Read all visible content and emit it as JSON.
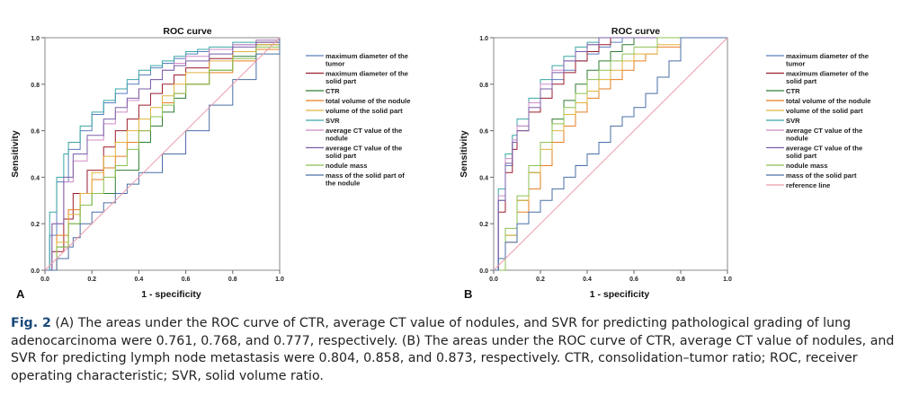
{
  "chart_data": [
    {
      "panel_label": "A",
      "type": "line",
      "title": "ROC curve",
      "xlabel": "1 - specificity",
      "ylabel": "Sensitivity",
      "xlim": [
        0,
        1
      ],
      "ylim": [
        0,
        1
      ],
      "xticks": [
        "0.0",
        "0.2",
        "0.4",
        "0.6",
        "0.8",
        "1.0"
      ],
      "yticks": [
        "0.0",
        "0.2",
        "0.4",
        "0.6",
        "0.8",
        "1.0"
      ],
      "legend_position": "right",
      "series": [
        {
          "name": "maximum diameter of the tumor",
          "color": "#5b7fbf",
          "x": [
            0,
            0.02,
            0.05,
            0.1,
            0.15,
            0.2,
            0.25,
            0.3,
            0.35,
            0.4,
            0.45,
            0.5,
            0.55,
            0.6,
            0.65,
            0.7,
            0.8,
            0.9,
            1
          ],
          "y": [
            0,
            0.15,
            0.38,
            0.52,
            0.6,
            0.67,
            0.72,
            0.76,
            0.8,
            0.84,
            0.87,
            0.89,
            0.91,
            0.93,
            0.94,
            0.95,
            0.97,
            0.99,
            1
          ]
        },
        {
          "name": "maximum diameter of the solid part",
          "color": "#9b1c2e",
          "x": [
            0,
            0.03,
            0.08,
            0.12,
            0.18,
            0.25,
            0.3,
            0.35,
            0.4,
            0.45,
            0.5,
            0.55,
            0.6,
            0.7,
            0.8,
            0.9,
            1
          ],
          "y": [
            0,
            0.08,
            0.22,
            0.33,
            0.43,
            0.53,
            0.6,
            0.65,
            0.71,
            0.76,
            0.8,
            0.84,
            0.87,
            0.91,
            0.94,
            0.98,
            1
          ]
        },
        {
          "name": "CTR",
          "color": "#2e7d32",
          "x": [
            0,
            0.05,
            0.1,
            0.15,
            0.2,
            0.3,
            0.4,
            0.45,
            0.5,
            0.55,
            0.6,
            0.7,
            0.8,
            0.9,
            1
          ],
          "y": [
            0,
            0.1,
            0.2,
            0.28,
            0.33,
            0.43,
            0.55,
            0.62,
            0.68,
            0.74,
            0.8,
            0.86,
            0.92,
            0.97,
            1
          ]
        },
        {
          "name": "total volume of the nodule",
          "color": "#e67e22",
          "x": [
            0,
            0.05,
            0.1,
            0.15,
            0.2,
            0.25,
            0.3,
            0.35,
            0.4,
            0.45,
            0.5,
            0.55,
            0.6,
            0.7,
            0.8,
            0.9,
            1
          ],
          "y": [
            0,
            0.15,
            0.26,
            0.33,
            0.39,
            0.44,
            0.49,
            0.55,
            0.6,
            0.66,
            0.72,
            0.76,
            0.8,
            0.85,
            0.9,
            0.95,
            1
          ]
        },
        {
          "name": "volume of the solid part",
          "color": "#e3b23c",
          "x": [
            0,
            0.05,
            0.1,
            0.15,
            0.2,
            0.25,
            0.3,
            0.35,
            0.4,
            0.45,
            0.5,
            0.55,
            0.6,
            0.7,
            0.8,
            0.9,
            1
          ],
          "y": [
            0,
            0.12,
            0.24,
            0.33,
            0.42,
            0.49,
            0.55,
            0.6,
            0.65,
            0.7,
            0.75,
            0.8,
            0.85,
            0.9,
            0.94,
            0.97,
            1
          ]
        },
        {
          "name": "SVR",
          "color": "#3aa6a6",
          "x": [
            0,
            0.02,
            0.05,
            0.08,
            0.1,
            0.15,
            0.2,
            0.25,
            0.3,
            0.35,
            0.4,
            0.45,
            0.5,
            0.55,
            0.6,
            0.65,
            0.7,
            0.8,
            0.9,
            1
          ],
          "y": [
            0,
            0.25,
            0.4,
            0.5,
            0.55,
            0.62,
            0.68,
            0.73,
            0.78,
            0.82,
            0.86,
            0.88,
            0.9,
            0.92,
            0.94,
            0.95,
            0.96,
            0.98,
            0.99,
            1
          ]
        },
        {
          "name": "average CT value of the nodule",
          "color": "#d08bc8",
          "x": [
            0,
            0.03,
            0.08,
            0.12,
            0.18,
            0.25,
            0.3,
            0.35,
            0.4,
            0.45,
            0.5,
            0.55,
            0.6,
            0.7,
            0.8,
            0.9,
            1
          ],
          "y": [
            0,
            0.2,
            0.38,
            0.47,
            0.56,
            0.63,
            0.68,
            0.73,
            0.78,
            0.82,
            0.86,
            0.89,
            0.92,
            0.95,
            0.97,
            0.99,
            1
          ]
        },
        {
          "name": "average CT value of the solid part",
          "color": "#7b5ea7",
          "x": [
            0,
            0.03,
            0.08,
            0.12,
            0.18,
            0.25,
            0.3,
            0.35,
            0.4,
            0.45,
            0.5,
            0.55,
            0.6,
            0.7,
            0.8,
            0.9,
            1
          ],
          "y": [
            0,
            0.2,
            0.4,
            0.5,
            0.58,
            0.65,
            0.7,
            0.74,
            0.78,
            0.82,
            0.86,
            0.88,
            0.9,
            0.93,
            0.96,
            0.98,
            1
          ]
        },
        {
          "name": "nodule mass",
          "color": "#8cc152",
          "x": [
            0,
            0.05,
            0.1,
            0.15,
            0.2,
            0.25,
            0.3,
            0.35,
            0.4,
            0.45,
            0.5,
            0.55,
            0.6,
            0.7,
            0.8,
            0.9,
            1
          ],
          "y": [
            0,
            0.1,
            0.2,
            0.28,
            0.33,
            0.4,
            0.45,
            0.52,
            0.6,
            0.66,
            0.71,
            0.76,
            0.8,
            0.86,
            0.91,
            0.96,
            1
          ]
        },
        {
          "name": "mass of the solid part of the nodule",
          "color": "#4a6fa5",
          "x": [
            0,
            0.05,
            0.1,
            0.12,
            0.15,
            0.2,
            0.25,
            0.3,
            0.35,
            0.4,
            0.5,
            0.6,
            0.7,
            0.8,
            0.9,
            1
          ],
          "y": [
            0,
            0.05,
            0.1,
            0.14,
            0.2,
            0.25,
            0.29,
            0.33,
            0.37,
            0.42,
            0.5,
            0.6,
            0.71,
            0.82,
            0.93,
            1
          ]
        },
        {
          "name": "reference line",
          "color": "#ef9aa8",
          "in_legend": false,
          "x": [
            0,
            1
          ],
          "y": [
            0,
            1
          ]
        }
      ]
    },
    {
      "panel_label": "B",
      "type": "line",
      "title": "ROC curve",
      "xlabel": "1 - specificity",
      "ylabel": "Sensitivity",
      "xlim": [
        0,
        1
      ],
      "ylim": [
        0,
        1
      ],
      "xticks": [
        "0.0",
        "0.2",
        "0.4",
        "0.6",
        "0.8",
        "1.0"
      ],
      "yticks": [
        "0.0",
        "0.2",
        "0.4",
        "0.6",
        "0.8",
        "1.0"
      ],
      "legend_position": "right",
      "series": [
        {
          "name": "maximum diameter of the tumor",
          "color": "#5b7fbf",
          "x": [
            0,
            0.02,
            0.05,
            0.08,
            0.1,
            0.15,
            0.2,
            0.25,
            0.3,
            0.35,
            0.4,
            0.45,
            0.5,
            0.55,
            0.6,
            0.65,
            0.7,
            1
          ],
          "y": [
            0,
            0.3,
            0.45,
            0.55,
            0.62,
            0.72,
            0.78,
            0.82,
            0.86,
            0.9,
            0.93,
            0.96,
            0.98,
            1,
            1,
            1,
            1,
            1
          ]
        },
        {
          "name": "maximum diameter of the solid part",
          "color": "#9b1c2e",
          "x": [
            0,
            0.02,
            0.05,
            0.08,
            0.1,
            0.15,
            0.2,
            0.25,
            0.3,
            0.35,
            0.4,
            0.45,
            0.5,
            0.55,
            0.6,
            1
          ],
          "y": [
            0,
            0.25,
            0.42,
            0.52,
            0.6,
            0.68,
            0.74,
            0.8,
            0.85,
            0.9,
            0.94,
            0.97,
            1,
            1,
            1,
            1
          ]
        },
        {
          "name": "CTR",
          "color": "#2e7d32",
          "x": [
            0,
            0.05,
            0.1,
            0.15,
            0.2,
            0.25,
            0.3,
            0.35,
            0.4,
            0.45,
            0.5,
            0.55,
            0.6,
            0.7,
            1
          ],
          "y": [
            0,
            0.15,
            0.3,
            0.42,
            0.55,
            0.65,
            0.73,
            0.8,
            0.86,
            0.9,
            0.94,
            0.97,
            1,
            1,
            1
          ]
        },
        {
          "name": "total volume of the nodule",
          "color": "#e67e22",
          "x": [
            0,
            0.05,
            0.1,
            0.15,
            0.2,
            0.25,
            0.3,
            0.35,
            0.4,
            0.45,
            0.5,
            0.55,
            0.6,
            0.65,
            0.7,
            0.8,
            1
          ],
          "y": [
            0,
            0.12,
            0.25,
            0.35,
            0.45,
            0.55,
            0.62,
            0.68,
            0.74,
            0.78,
            0.82,
            0.86,
            0.9,
            0.93,
            0.96,
            1,
            1
          ]
        },
        {
          "name": "volume of the solid part",
          "color": "#e3b23c",
          "x": [
            0,
            0.05,
            0.1,
            0.15,
            0.2,
            0.25,
            0.3,
            0.35,
            0.4,
            0.45,
            0.5,
            0.55,
            0.6,
            0.7,
            0.8,
            1
          ],
          "y": [
            0,
            0.15,
            0.3,
            0.42,
            0.52,
            0.6,
            0.67,
            0.72,
            0.77,
            0.82,
            0.86,
            0.9,
            0.93,
            0.97,
            1,
            1
          ]
        },
        {
          "name": "SVR",
          "color": "#3aa6a6",
          "x": [
            0,
            0.02,
            0.05,
            0.08,
            0.1,
            0.15,
            0.2,
            0.25,
            0.3,
            0.35,
            0.4,
            0.45,
            0.5,
            0.55,
            1
          ],
          "y": [
            0,
            0.35,
            0.5,
            0.58,
            0.65,
            0.74,
            0.82,
            0.88,
            0.92,
            0.96,
            0.98,
            1,
            1,
            1,
            1
          ]
        },
        {
          "name": "average CT value of the nodule",
          "color": "#d08bc8",
          "x": [
            0,
            0.02,
            0.05,
            0.08,
            0.1,
            0.15,
            0.2,
            0.25,
            0.3,
            0.35,
            0.4,
            0.45,
            0.5,
            1
          ],
          "y": [
            0,
            0.32,
            0.48,
            0.56,
            0.62,
            0.72,
            0.8,
            0.86,
            0.9,
            0.94,
            0.97,
            1,
            1,
            1
          ]
        },
        {
          "name": "average CT value of the solid part",
          "color": "#7b5ea7",
          "x": [
            0,
            0.02,
            0.05,
            0.08,
            0.1,
            0.15,
            0.2,
            0.25,
            0.3,
            0.35,
            0.4,
            0.45,
            0.5,
            1
          ],
          "y": [
            0,
            0.3,
            0.46,
            0.55,
            0.6,
            0.7,
            0.78,
            0.85,
            0.9,
            0.94,
            0.97,
            1,
            1,
            1
          ]
        },
        {
          "name": "nodule mass",
          "color": "#8cc152",
          "x": [
            0,
            0.05,
            0.1,
            0.15,
            0.2,
            0.25,
            0.3,
            0.35,
            0.4,
            0.45,
            0.5,
            0.55,
            0.6,
            0.7,
            1
          ],
          "y": [
            0,
            0.18,
            0.32,
            0.45,
            0.55,
            0.63,
            0.7,
            0.76,
            0.82,
            0.86,
            0.9,
            0.93,
            0.96,
            1,
            1
          ]
        },
        {
          "name": "mass of the solid part",
          "color": "#4a6fa5",
          "x": [
            0,
            0.02,
            0.05,
            0.1,
            0.15,
            0.2,
            0.25,
            0.3,
            0.35,
            0.4,
            0.45,
            0.5,
            0.55,
            0.6,
            0.65,
            0.7,
            0.75,
            0.8,
            0.85,
            0.9,
            1
          ],
          "y": [
            0,
            0.05,
            0.12,
            0.2,
            0.25,
            0.3,
            0.35,
            0.4,
            0.45,
            0.5,
            0.55,
            0.62,
            0.66,
            0.7,
            0.76,
            0.83,
            0.9,
            1,
            1,
            1,
            1
          ]
        },
        {
          "name": "reference line",
          "color": "#ef9aa8",
          "x": [
            0,
            1
          ],
          "y": [
            0,
            1
          ]
        }
      ]
    }
  ],
  "caption": {
    "label": "Fig. 2",
    "text": " (A) The areas under the ROC curve of CTR, average CT value of nodules, and SVR for predicting pathological grading of lung adenocarcinoma were 0.761, 0.768, and 0.777, respectively. (B) The areas under the ROC curve of CTR, average CT value of nodules, and SVR for predicting lymph node metastasis were 0.804, 0.858, and 0.873, respectively. CTR, consolidation–tumor ratio; ROC, receiver operating characteristic; SVR, solid volume ratio."
  }
}
